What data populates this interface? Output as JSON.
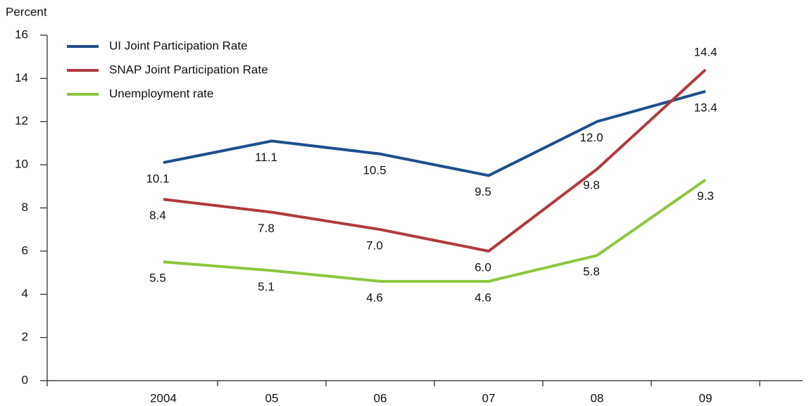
{
  "chart_data": {
    "type": "line",
    "y_label": "Percent",
    "categories": [
      "2004",
      "05",
      "06",
      "07",
      "08",
      "09"
    ],
    "series": [
      {
        "name": "UI Joint Participation Rate",
        "color": "#1f4e8c",
        "values": [
          10.1,
          11.1,
          10.5,
          9.5,
          12.0,
          13.4
        ],
        "value_labels": [
          "10.1",
          "11.1",
          "10.5",
          "9.5",
          "12.0",
          "13.4"
        ]
      },
      {
        "name": "SNAP Joint Participation Rate",
        "color": "#b03a3e",
        "values": [
          8.4,
          7.8,
          7.0,
          6.0,
          9.8,
          14.4
        ],
        "value_labels": [
          "8.4",
          "7.8",
          "7.0",
          "6.0",
          "9.8",
          "14.4"
        ]
      },
      {
        "name": "Unemployment rate",
        "color": "#8dc63f",
        "values": [
          5.5,
          5.1,
          4.6,
          4.6,
          5.8,
          9.3
        ],
        "value_labels": [
          "5.5",
          "5.1",
          "4.6",
          "4.6",
          "5.8",
          "9.3"
        ]
      }
    ],
    "ylim": [
      0,
      16
    ],
    "yticks": [
      0,
      2,
      4,
      6,
      8,
      10,
      12,
      14,
      16
    ],
    "grid": false,
    "legend": "top-left"
  }
}
